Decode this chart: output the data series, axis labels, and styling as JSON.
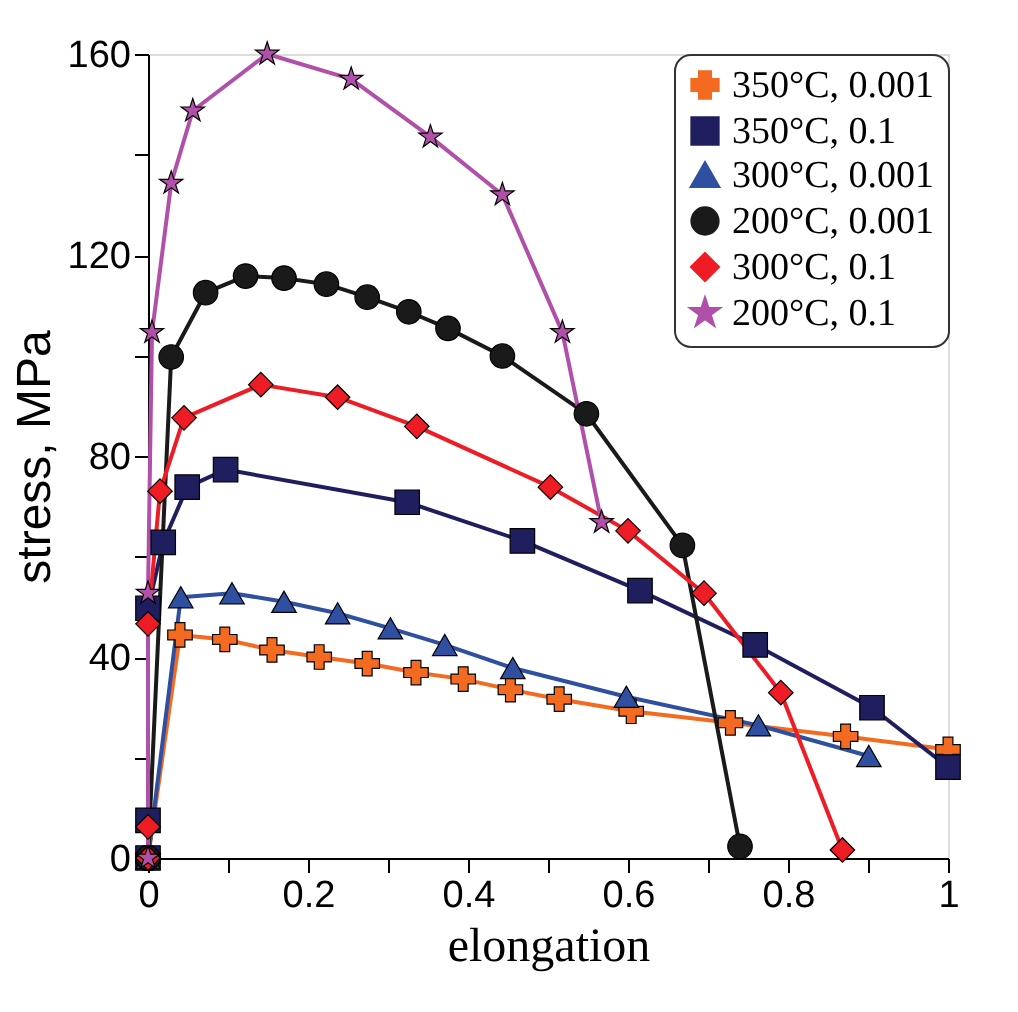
{
  "chart_data": {
    "type": "line",
    "xlabel": "elongation",
    "ylabel": "stress, MPa",
    "xlim": [
      0,
      1
    ],
    "ylim": [
      0,
      160
    ],
    "xticks": [
      0,
      {
        "value": 0.1,
        "label": null
      },
      0.2,
      {
        "value": 0.3,
        "label": null
      },
      0.4,
      {
        "value": 0.5,
        "label": null
      },
      0.6,
      {
        "value": 0.7,
        "label": null
      },
      0.8,
      {
        "value": 0.9,
        "label": null
      },
      1
    ],
    "yticks": [
      0,
      {
        "value": 20,
        "label": null
      },
      40,
      {
        "value": 60,
        "label": null
      },
      80,
      {
        "value": 100,
        "label": null
      },
      120,
      {
        "value": 140,
        "label": null
      },
      160
    ],
    "grid": false,
    "legend": "top right",
    "line_style": "solid",
    "series": [
      {
        "name": "350°C, 0.001",
        "color": "#f26b21",
        "marker": "cross",
        "x": [
          0,
          0.04,
          0.096,
          0.155,
          0.214,
          0.274,
          0.335,
          0.394,
          0.453,
          0.514,
          0.604,
          0.728,
          0.872,
          1.0
        ],
        "values": [
          0,
          44.4,
          43.5,
          41.4,
          40,
          38.7,
          36.9,
          35.6,
          33.5,
          31.6,
          29.2,
          26.9,
          24.2,
          21.6
        ]
      },
      {
        "name": "350°C, 0.1",
        "color": "#1f1e5e",
        "marker": "square",
        "x": [
          0,
          0,
          0,
          0.019,
          0.049,
          0.097,
          0.324,
          0.468,
          0.615,
          0.759,
          0.905,
          1.0
        ],
        "values": [
          0,
          7.5,
          49.7,
          62.8,
          73.8,
          77.3,
          70.8,
          63.1,
          53.2,
          42.4,
          29.9,
          18.1
        ]
      },
      {
        "name": "300°C, 0.001",
        "color": "#2f4fa0",
        "marker": "triangle",
        "x": [
          0,
          0.041,
          0.105,
          0.17,
          0.237,
          0.303,
          0.371,
          0.456,
          0.598,
          0.763,
          0.901
        ],
        "values": [
          0,
          51.9,
          52.7,
          51,
          48.7,
          45.7,
          42.4,
          37.8,
          32.1,
          26.4,
          20.3
        ]
      },
      {
        "name": "200°C, 0.001",
        "color": "#1a1a1a",
        "marker": "circle",
        "x": [
          0,
          0.029,
          0.072,
          0.122,
          0.17,
          0.223,
          0.274,
          0.326,
          0.375,
          0.443,
          0.548,
          0.668,
          0.74
        ],
        "values": [
          0,
          99.7,
          112.5,
          115.8,
          115.4,
          114.2,
          111.6,
          108.7,
          105.4,
          99.9,
          88.4,
          62.2,
          2.3
        ]
      },
      {
        "name": "300°C, 0.1",
        "color": "#ee1c24",
        "marker": "diamond",
        "x": [
          0,
          0,
          0,
          0.015,
          0.045,
          0.141,
          0.237,
          0.336,
          0.503,
          0.6,
          0.695,
          0.791,
          0.868
        ],
        "values": [
          0,
          6.2,
          46.6,
          73,
          87.6,
          94.2,
          91.7,
          85.9,
          73.8,
          65.1,
          52.7,
          32.9,
          1.6
        ]
      },
      {
        "name": "200°C, 0.1",
        "color": "#b150a8",
        "marker": "star",
        "x": [
          0,
          0,
          0.005,
          0.029,
          0.056,
          0.149,
          0.254,
          0.353,
          0.443,
          0.518,
          0.567
        ],
        "values": [
          0,
          52.7,
          104.6,
          134.3,
          148.7,
          160,
          155,
          143.5,
          132,
          104.6,
          66.8
        ]
      }
    ]
  }
}
